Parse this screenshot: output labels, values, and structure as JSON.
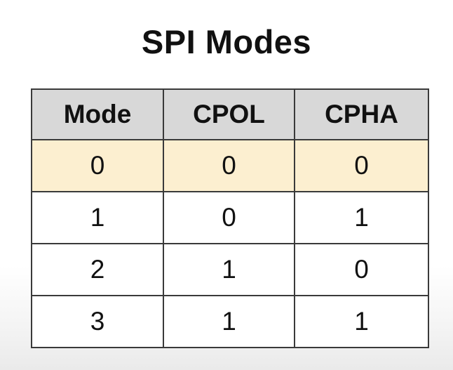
{
  "title": "SPI Modes",
  "table": {
    "headers": [
      "Mode",
      "CPOL",
      "CPHA"
    ],
    "rows": [
      [
        "0",
        "0",
        "0"
      ],
      [
        "1",
        "0",
        "1"
      ],
      [
        "2",
        "1",
        "0"
      ],
      [
        "3",
        "1",
        "1"
      ]
    ],
    "highlighted_row": 0
  },
  "colors": {
    "header_background": "#d8d8d8",
    "highlight_background": "#fcefd0",
    "border": "#3a3a3a",
    "text": "#111111"
  }
}
